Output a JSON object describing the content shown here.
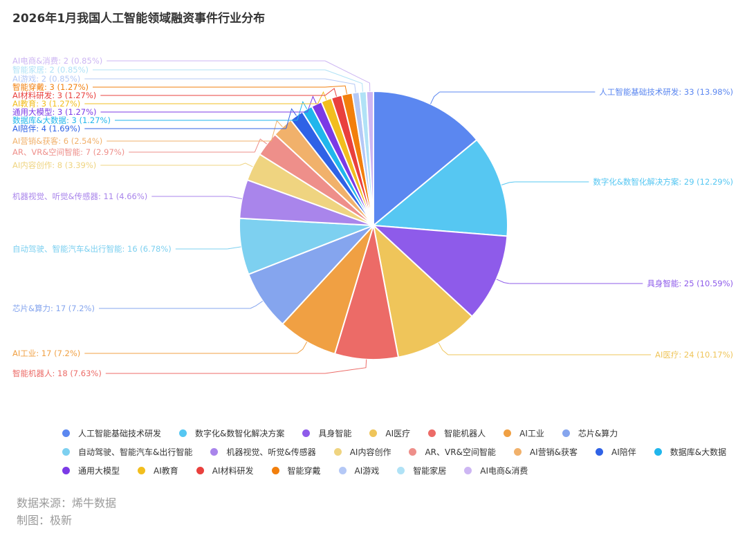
{
  "chart_data": {
    "type": "pie",
    "title": "2026年1月我国人工智能领域融资事件行业分布",
    "label_format": "{name}: {value} ({percent}%)",
    "slices": [
      {
        "name": "人工智能基础技术研发",
        "value": 33,
        "percent": "13.98",
        "color": "#5B87F0"
      },
      {
        "name": "数字化&数智化解决方案",
        "value": 29,
        "percent": "12.29",
        "color": "#56C7F2"
      },
      {
        "name": "具身智能",
        "value": 25,
        "percent": "10.59",
        "color": "#8E5BEA"
      },
      {
        "name": "AI医疗",
        "value": 24,
        "percent": "10.17",
        "color": "#EFC55A"
      },
      {
        "name": "智能机器人",
        "value": 18,
        "percent": "7.63",
        "color": "#EC6B67"
      },
      {
        "name": "AI工业",
        "value": 17,
        "percent": "7.2",
        "color": "#F0A043"
      },
      {
        "name": "芯片&算力",
        "value": 17,
        "percent": "7.2",
        "color": "#85A5EE"
      },
      {
        "name": "自动驾驶、智能汽车&出行智能",
        "value": 16,
        "percent": "6.78",
        "color": "#7DD0F0"
      },
      {
        "name": "机器视觉、听觉&传感器",
        "value": 11,
        "percent": "4.66",
        "color": "#A985EB"
      },
      {
        "name": "AI内容创作",
        "value": 8,
        "percent": "3.39",
        "color": "#EFD480"
      },
      {
        "name": "AR、VR&空间智能",
        "value": 7,
        "percent": "2.97",
        "color": "#EE8F8A"
      },
      {
        "name": "AI营销&获客",
        "value": 6,
        "percent": "2.54",
        "color": "#F1B16B"
      },
      {
        "name": "AI陪伴",
        "value": 4,
        "percent": "1.69",
        "color": "#2F62E6"
      },
      {
        "name": "数据库&大数据",
        "value": 3,
        "percent": "1.27",
        "color": "#20B6EC"
      },
      {
        "name": "通用大模型",
        "value": 3,
        "percent": "1.27",
        "color": "#7B3AE6"
      },
      {
        "name": "AI教育",
        "value": 3,
        "percent": "1.27",
        "color": "#F2BE1E"
      },
      {
        "name": "AI材料研发",
        "value": 3,
        "percent": "1.27",
        "color": "#E9403D"
      },
      {
        "name": "智能穿戴",
        "value": 3,
        "percent": "1.27",
        "color": "#F27F0C"
      },
      {
        "name": "AI游戏",
        "value": 2,
        "percent": "0.85",
        "color": "#B4C8F6"
      },
      {
        "name": "智能家居",
        "value": 2,
        "percent": "0.85",
        "color": "#B0E2F6"
      },
      {
        "name": "AI电商&消费",
        "value": 2,
        "percent": "0.85",
        "color": "#CDB6F3"
      }
    ],
    "legend_placement": "bottom"
  },
  "footer": {
    "source": "数据来源：烯牛数据",
    "author": "制图：极新"
  }
}
